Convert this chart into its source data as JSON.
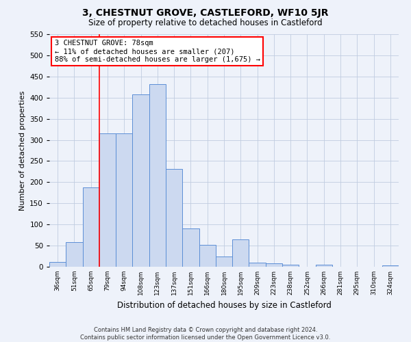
{
  "title": "3, CHESTNUT GROVE, CASTLEFORD, WF10 5JR",
  "subtitle": "Size of property relative to detached houses in Castleford",
  "xlabel": "Distribution of detached houses by size in Castleford",
  "ylabel": "Number of detached properties",
  "bin_labels": [
    "36sqm",
    "51sqm",
    "65sqm",
    "79sqm",
    "94sqm",
    "108sqm",
    "123sqm",
    "137sqm",
    "151sqm",
    "166sqm",
    "180sqm",
    "195sqm",
    "209sqm",
    "223sqm",
    "238sqm",
    "252sqm",
    "266sqm",
    "281sqm",
    "295sqm",
    "310sqm",
    "324sqm"
  ],
  "bar_values": [
    12,
    58,
    188,
    315,
    315,
    408,
    432,
    232,
    90,
    52,
    25,
    65,
    10,
    8,
    5,
    0,
    5,
    0,
    0,
    0,
    3
  ],
  "bar_color": "#ccd9f0",
  "bar_edge_color": "#5b8ed6",
  "ylim": [
    0,
    550
  ],
  "yticks": [
    0,
    50,
    100,
    150,
    200,
    250,
    300,
    350,
    400,
    450,
    500,
    550
  ],
  "property_line_x": 3,
  "annotation_line1": "3 CHESTNUT GROVE: 78sqm",
  "annotation_line2": "← 11% of detached houses are smaller (207)",
  "annotation_line3": "88% of semi-detached houses are larger (1,675) →",
  "footer_line1": "Contains HM Land Registry data © Crown copyright and database right 2024.",
  "footer_line2": "Contains public sector information licensed under the Open Government Licence v3.0.",
  "bg_color": "#eef2fa",
  "plot_bg_color": "#eef2fa",
  "grid_color": "#c0cce0"
}
